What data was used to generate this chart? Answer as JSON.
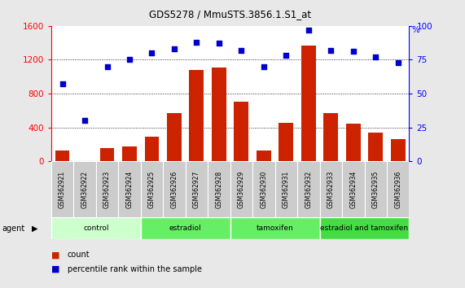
{
  "title": "GDS5278 / MmuSTS.3856.1.S1_at",
  "categories": [
    "GSM362921",
    "GSM362922",
    "GSM362923",
    "GSM362924",
    "GSM362925",
    "GSM362926",
    "GSM362927",
    "GSM362928",
    "GSM362929",
    "GSM362930",
    "GSM362931",
    "GSM362932",
    "GSM362933",
    "GSM362934",
    "GSM362935",
    "GSM362936"
  ],
  "counts": [
    130,
    5,
    160,
    175,
    290,
    570,
    1080,
    1110,
    700,
    130,
    450,
    1370,
    570,
    440,
    340,
    260
  ],
  "percentiles": [
    57,
    30,
    70,
    75,
    80,
    83,
    88,
    87,
    82,
    70,
    78,
    97,
    82,
    81,
    77,
    73
  ],
  "bar_color": "#cc2200",
  "dot_color": "#0000cc",
  "ylim_left": [
    0,
    1600
  ],
  "ylim_right": [
    0,
    100
  ],
  "yticks_left": [
    0,
    400,
    800,
    1200,
    1600
  ],
  "yticks_right": [
    0,
    25,
    50,
    75,
    100
  ],
  "groups": [
    {
      "label": "control",
      "start": 0,
      "end": 4,
      "color": "#ccffcc"
    },
    {
      "label": "estradiol",
      "start": 4,
      "end": 8,
      "color": "#66ee66"
    },
    {
      "label": "tamoxifen",
      "start": 8,
      "end": 12,
      "color": "#66ee66"
    },
    {
      "label": "estradiol and tamoxifen",
      "start": 12,
      "end": 16,
      "color": "#44dd44"
    }
  ],
  "agent_label": "agent",
  "legend_count_label": "count",
  "legend_pct_label": "percentile rank within the sample",
  "fig_bg_color": "#e8e8e8",
  "plot_bg_color": "#ffffff",
  "tick_label_bg": "#cccccc"
}
